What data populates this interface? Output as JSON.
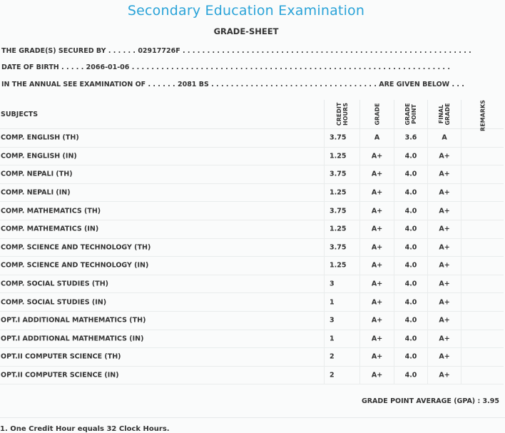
{
  "header": {
    "exam_title": "Secondary Education Examination",
    "sheet_title": "GRADE-SHEET"
  },
  "info": {
    "secured_by": "THE GRADE(S) SECURED BY . . . . . . 02917726F . . . . . . . . . . . . . . . . . . . . . . . . . . . . . . . . . . . . . . . . . . . . . . . . . . . . . . . . . . .",
    "dob": "DATE OF BIRTH . . . . . 2066-01-06 . . . . . . . . . . . . . . . . . . . . . . . . . . . . . . . . . . . . . . . . . . . . . . . . . . . . . . . . . . . . . . . . .",
    "exam": "IN THE ANNUAL SEE EXAMINATION OF . . . . . . 2081 BS . . . . . . . . . . . . . . . . . . . . . . . . . . . . . . . . . . ARE GIVEN BELOW . . ."
  },
  "table": {
    "headers": {
      "subjects": "SUBJECTS",
      "credit_1": "CREDIT",
      "credit_2": "HOURS",
      "grade": "GRADE",
      "gp_1": "GRADE",
      "gp_2": "POINT",
      "fg_1": "FINAL",
      "fg_2": "GRADE",
      "remarks": "REMARKS"
    },
    "rows": [
      {
        "subject": "COMP. ENGLISH (TH)",
        "credit": "3.75",
        "grade": "A",
        "gp": "3.6",
        "final": "A",
        "remarks": ""
      },
      {
        "subject": "COMP. ENGLISH (IN)",
        "credit": "1.25",
        "grade": "A+",
        "gp": "4.0",
        "final": "A+",
        "remarks": ""
      },
      {
        "subject": "COMP. NEPALI (TH)",
        "credit": "3.75",
        "grade": "A+",
        "gp": "4.0",
        "final": "A+",
        "remarks": ""
      },
      {
        "subject": "COMP. NEPALI (IN)",
        "credit": "1.25",
        "grade": "A+",
        "gp": "4.0",
        "final": "A+",
        "remarks": ""
      },
      {
        "subject": "COMP. MATHEMATICS (TH)",
        "credit": "3.75",
        "grade": "A+",
        "gp": "4.0",
        "final": "A+",
        "remarks": ""
      },
      {
        "subject": "COMP. MATHEMATICS (IN)",
        "credit": "1.25",
        "grade": "A+",
        "gp": "4.0",
        "final": "A+",
        "remarks": ""
      },
      {
        "subject": "COMP. SCIENCE AND TECHNOLOGY (TH)",
        "credit": "3.75",
        "grade": "A+",
        "gp": "4.0",
        "final": "A+",
        "remarks": ""
      },
      {
        "subject": "COMP. SCIENCE AND TECHNOLOGY (IN)",
        "credit": "1.25",
        "grade": "A+",
        "gp": "4.0",
        "final": "A+",
        "remarks": ""
      },
      {
        "subject": "COMP. SOCIAL STUDIES (TH)",
        "credit": "3",
        "grade": "A+",
        "gp": "4.0",
        "final": "A+",
        "remarks": ""
      },
      {
        "subject": "COMP. SOCIAL STUDIES (IN)",
        "credit": "1",
        "grade": "A+",
        "gp": "4.0",
        "final": "A+",
        "remarks": ""
      },
      {
        "subject": "OPT.I ADDITIONAL MATHEMATICS (TH)",
        "credit": "3",
        "grade": "A+",
        "gp": "4.0",
        "final": "A+",
        "remarks": ""
      },
      {
        "subject": "OPT.I ADDITIONAL MATHEMATICS (IN)",
        "credit": "1",
        "grade": "A+",
        "gp": "4.0",
        "final": "A+",
        "remarks": ""
      },
      {
        "subject": "OPT.II COMPUTER SCIENCE (TH)",
        "credit": "2",
        "grade": "A+",
        "gp": "4.0",
        "final": "A+",
        "remarks": ""
      },
      {
        "subject": "OPT.II COMPUTER SCIENCE (IN)",
        "credit": "2",
        "grade": "A+",
        "gp": "4.0",
        "final": "A+",
        "remarks": ""
      }
    ]
  },
  "gpa": "GRADE POINT AVERAGE (GPA) : 3.95",
  "footer": {
    "note": "1. One Credit Hour equals 32 Clock Hours."
  }
}
